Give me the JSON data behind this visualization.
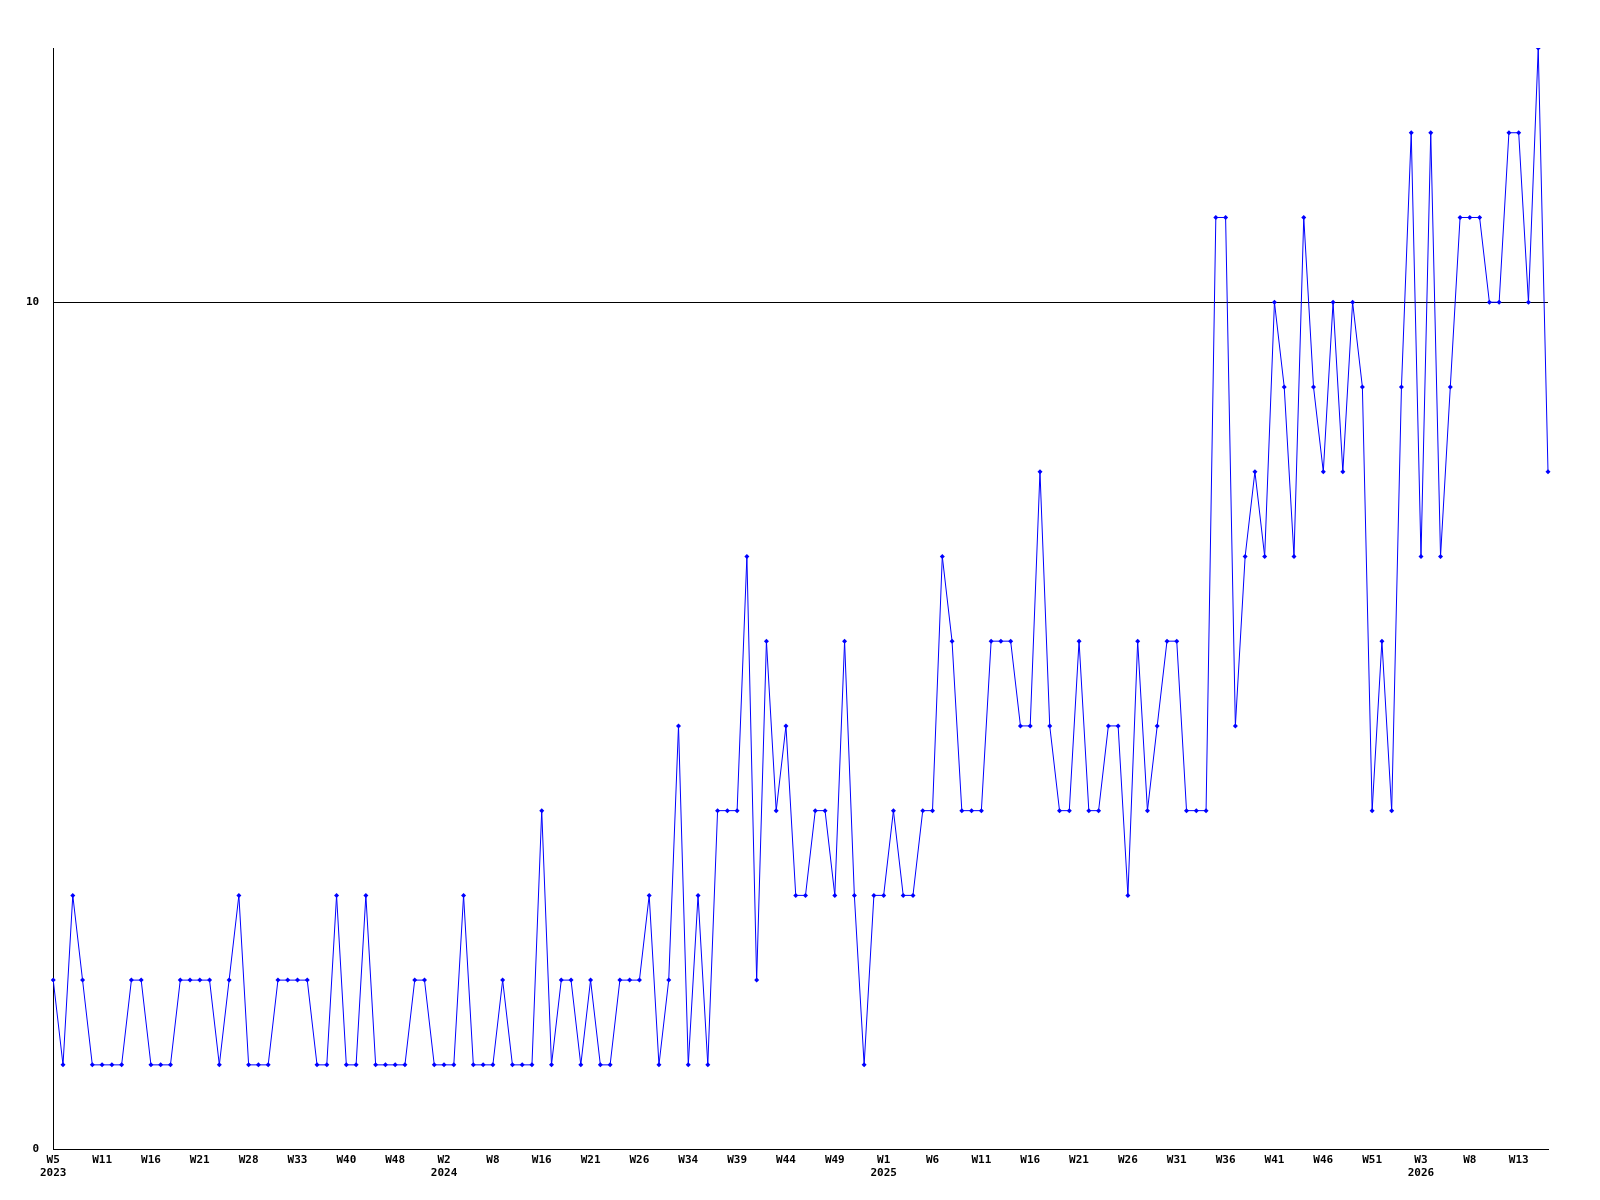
{
  "chart_data": {
    "type": "line",
    "categories": [
      "W5\n2023",
      null,
      null,
      null,
      null,
      "W11",
      null,
      null,
      null,
      null,
      "W16",
      null,
      null,
      null,
      null,
      "W21",
      null,
      null,
      null,
      null,
      "W28",
      null,
      null,
      null,
      null,
      "W33",
      null,
      null,
      null,
      null,
      "W40",
      null,
      null,
      null,
      null,
      "W48",
      null,
      null,
      null,
      null,
      "W2\n2024",
      null,
      null,
      null,
      null,
      "W8",
      null,
      null,
      null,
      null,
      "W16",
      null,
      null,
      null,
      null,
      "W21",
      null,
      null,
      null,
      null,
      "W26",
      null,
      null,
      null,
      null,
      "W34",
      null,
      null,
      null,
      null,
      "W39",
      null,
      null,
      null,
      null,
      "W44",
      null,
      null,
      null,
      null,
      "W49",
      null,
      null,
      null,
      null,
      "W1\n2025",
      null,
      null,
      null,
      null,
      "W6",
      null,
      null,
      null,
      null,
      "W11",
      null,
      null,
      null,
      null,
      "W16",
      null,
      null,
      null,
      null,
      "W21",
      null,
      null,
      null,
      null,
      "W26",
      null,
      null,
      null,
      null,
      "W31",
      null,
      null,
      null,
      null,
      "W36",
      null,
      null,
      null,
      null,
      "W41",
      null,
      null,
      null,
      null,
      "W46",
      null,
      null,
      null,
      null,
      "W51",
      null,
      null,
      null,
      null,
      "W3\n2026",
      null,
      null,
      null,
      null,
      "W8",
      null,
      null,
      null,
      null,
      "W13",
      null,
      null,
      null
    ],
    "series": [
      {
        "color": "#0000ff",
        "values": [
          2,
          1,
          3,
          2,
          1,
          1,
          1,
          1,
          2,
          2,
          1,
          1,
          1,
          2,
          2,
          2,
          2,
          1,
          2,
          3,
          1,
          1,
          1,
          2,
          2,
          2,
          2,
          1,
          1,
          3,
          1,
          1,
          3,
          1,
          1,
          1,
          1,
          2,
          2,
          1,
          1,
          1,
          3,
          1,
          1,
          1,
          2,
          1,
          1,
          1,
          4,
          1,
          2,
          2,
          1,
          2,
          1,
          1,
          2,
          2,
          2,
          3,
          1,
          2,
          5,
          1,
          3,
          1,
          4,
          4,
          4,
          7,
          2,
          6,
          4,
          5,
          3,
          3,
          4,
          4,
          3,
          6,
          3,
          1,
          3,
          3,
          4,
          3,
          3,
          4,
          4,
          7,
          6,
          4,
          4,
          4,
          6,
          6,
          6,
          5,
          5,
          8,
          5,
          4,
          4,
          6,
          4,
          4,
          5,
          5,
          3,
          6,
          4,
          5,
          6,
          6,
          4,
          4,
          4,
          11,
          11,
          5,
          7,
          8,
          7,
          10,
          9,
          7,
          11,
          9,
          8,
          10,
          8,
          10,
          9,
          4,
          6,
          4,
          9,
          12,
          7,
          12,
          7,
          9,
          11,
          11,
          11,
          10,
          10,
          12,
          12,
          10,
          13,
          8
        ]
      }
    ],
    "ylim": [
      0,
      13
    ],
    "yticks": [
      0,
      10
    ],
    "grid": "y",
    "marker": "diamond",
    "line_style": "solid",
    "legend": false
  }
}
